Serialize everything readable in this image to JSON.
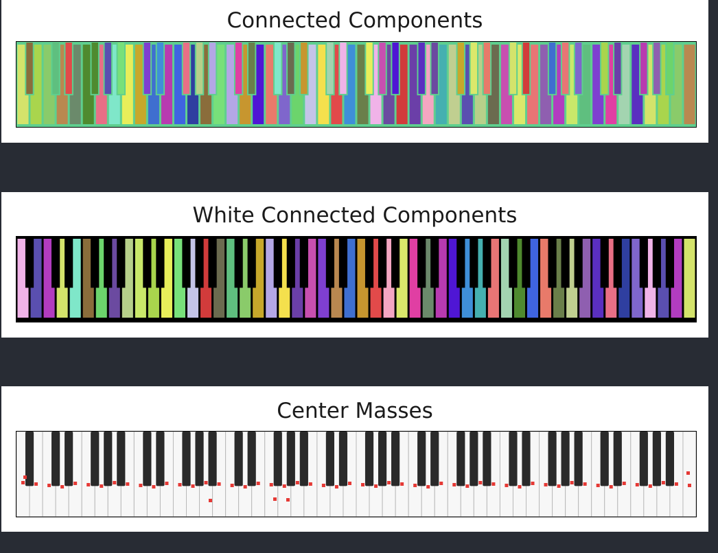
{
  "panels": [
    {
      "title": "Connected Components",
      "kind": "connected_components",
      "background": "#5fcf8f"
    },
    {
      "title": "White Connected Components",
      "kind": "white_components",
      "background": "#000000"
    },
    {
      "title": "Center Masses",
      "kind": "center_masses",
      "background": "#f2f2f2"
    }
  ],
  "keyboard": {
    "white_keys": 52,
    "black_key_pattern_per_octave": [
      "C#",
      "D#",
      "F#",
      "G#",
      "A#"
    ]
  },
  "colors": {
    "page_background": "#282c34",
    "panel_background": "#ffffff",
    "center_mass_marker": "#e53935",
    "component_palette": [
      "#f0b3e8",
      "#5a4fb0",
      "#b23cc0",
      "#d4e36b",
      "#7fe7c9",
      "#8a6d3b",
      "#6cd46c",
      "#6b4aa0",
      "#b7d08a",
      "#c9e86a",
      "#a9d54d",
      "#e8ee5a",
      "#78e07a",
      "#c4c4e8",
      "#d23b3b",
      "#6b6b4f",
      "#5fbf7f",
      "#8acb6a",
      "#c7a82b",
      "#b4a7e6",
      "#f4e04d",
      "#6b3fa8",
      "#c84fb0",
      "#7f3fd0",
      "#b98850",
      "#3f6fd0",
      "#c7962f",
      "#e24a4a",
      "#f4a6c2",
      "#dbe86b",
      "#e03fa3",
      "#6b8a6b",
      "#b83ab0",
      "#4f16d4",
      "#3f8fd8",
      "#45b0b0",
      "#e87575",
      "#a3d4b0",
      "#4f8a2f",
      "#3f64e0",
      "#e87a6a",
      "#6a7f4a",
      "#c0cf90",
      "#8f5fb0",
      "#5a2fc0",
      "#e86f86",
      "#2f3fa0",
      "#7f66cc"
    ]
  }
}
